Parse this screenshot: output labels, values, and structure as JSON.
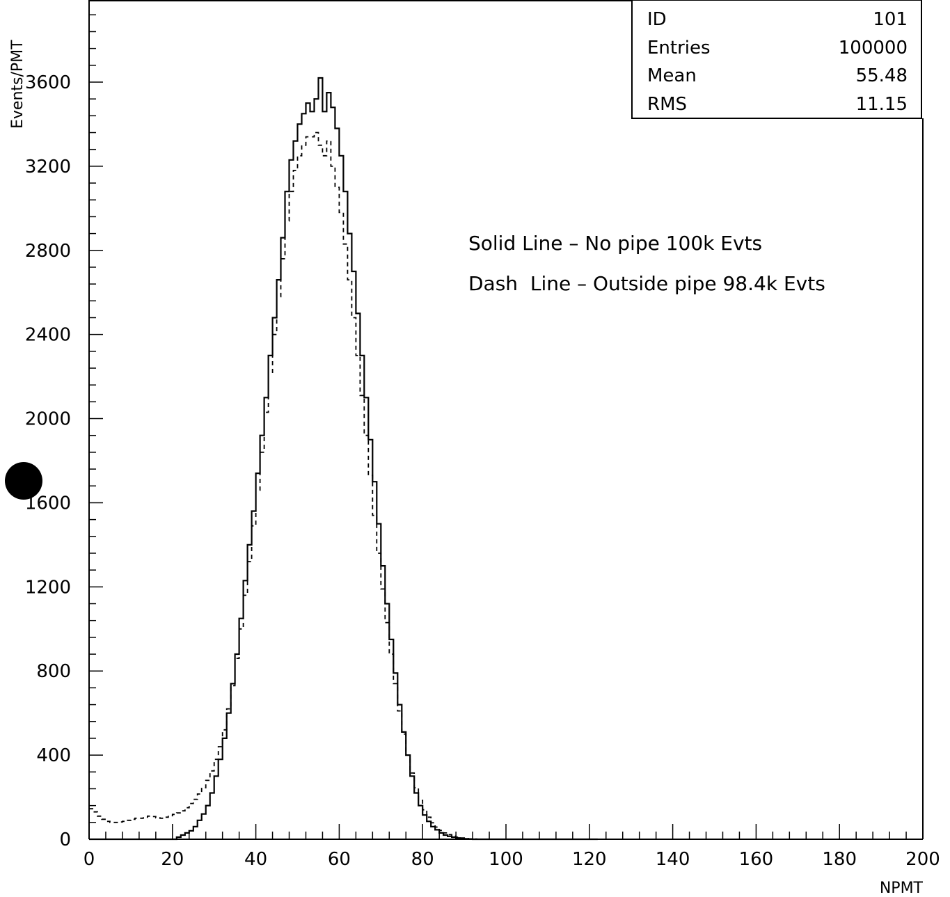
{
  "chart_data": {
    "type": "histogram",
    "xlabel": "NPMT",
    "ylabel": "Events/PMT",
    "xlim": [
      0,
      200
    ],
    "ylim": [
      0,
      3600
    ],
    "y_ticks": [
      0,
      400,
      800,
      1200,
      1600,
      2000,
      2400,
      2800,
      3200,
      3600
    ],
    "x_ticks": [
      0,
      20,
      40,
      60,
      80,
      100,
      120,
      140,
      160,
      180,
      200
    ],
    "bin_width": 1,
    "grid": false,
    "stats_box": [
      {
        "label": "ID",
        "value": "101"
      },
      {
        "label": "Entries",
        "value": "100000"
      },
      {
        "label": "Mean",
        "value": "55.48"
      },
      {
        "label": "RMS",
        "value": "11.15"
      }
    ],
    "annotations": [
      "Solid Line – No pipe 100k Evts",
      "Dash  Line – Outside pipe 98.4k Evts"
    ],
    "series": [
      {
        "style": "solid",
        "x_start": 0,
        "values": [
          0,
          0,
          0,
          0,
          0,
          0,
          0,
          0,
          0,
          0,
          0,
          0,
          0,
          0,
          0,
          0,
          0,
          0,
          0,
          0,
          0,
          10,
          20,
          30,
          40,
          60,
          90,
          120,
          160,
          220,
          300,
          380,
          480,
          600,
          740,
          880,
          1050,
          1230,
          1400,
          1560,
          1740,
          1920,
          2100,
          2300,
          2480,
          2660,
          2860,
          3080,
          3230,
          3320,
          3400,
          3450,
          3500,
          3460,
          3520,
          3620,
          3460,
          3550,
          3480,
          3380,
          3250,
          3080,
          2880,
          2700,
          2500,
          2300,
          2100,
          1900,
          1700,
          1500,
          1300,
          1120,
          950,
          790,
          640,
          510,
          400,
          300,
          220,
          160,
          115,
          85,
          60,
          45,
          30,
          20,
          14,
          10,
          6,
          4,
          2,
          1,
          0,
          0,
          0,
          0,
          0,
          0,
          0,
          0,
          0,
          0,
          0,
          0,
          0,
          0,
          0,
          0,
          0,
          0,
          0,
          0,
          0,
          0,
          0,
          0,
          0,
          0,
          0,
          0,
          0,
          0
        ]
      },
      {
        "style": "dashed",
        "x_start": 0,
        "values": [
          145,
          130,
          110,
          95,
          85,
          80,
          80,
          82,
          85,
          90,
          95,
          100,
          100,
          105,
          110,
          108,
          102,
          100,
          105,
          112,
          118,
          125,
          135,
          150,
          170,
          190,
          215,
          245,
          280,
          325,
          380,
          440,
          520,
          620,
          730,
          860,
          1000,
          1160,
          1320,
          1490,
          1660,
          1840,
          2030,
          2220,
          2400,
          2580,
          2760,
          2940,
          3080,
          3180,
          3250,
          3300,
          3340,
          3340,
          3360,
          3300,
          3250,
          3320,
          3200,
          3100,
          2980,
          2830,
          2660,
          2480,
          2300,
          2110,
          1920,
          1730,
          1540,
          1360,
          1190,
          1030,
          880,
          740,
          610,
          500,
          400,
          315,
          245,
          185,
          140,
          105,
          78,
          58,
          42,
          30,
          22,
          15,
          10,
          6,
          3,
          2,
          1,
          0,
          0,
          0,
          0,
          0,
          0,
          0,
          0,
          0,
          0,
          0,
          0,
          0,
          0,
          0,
          0,
          0,
          0,
          0,
          0,
          0,
          0,
          0,
          0,
          0,
          0,
          0,
          0,
          0
        ]
      }
    ]
  }
}
